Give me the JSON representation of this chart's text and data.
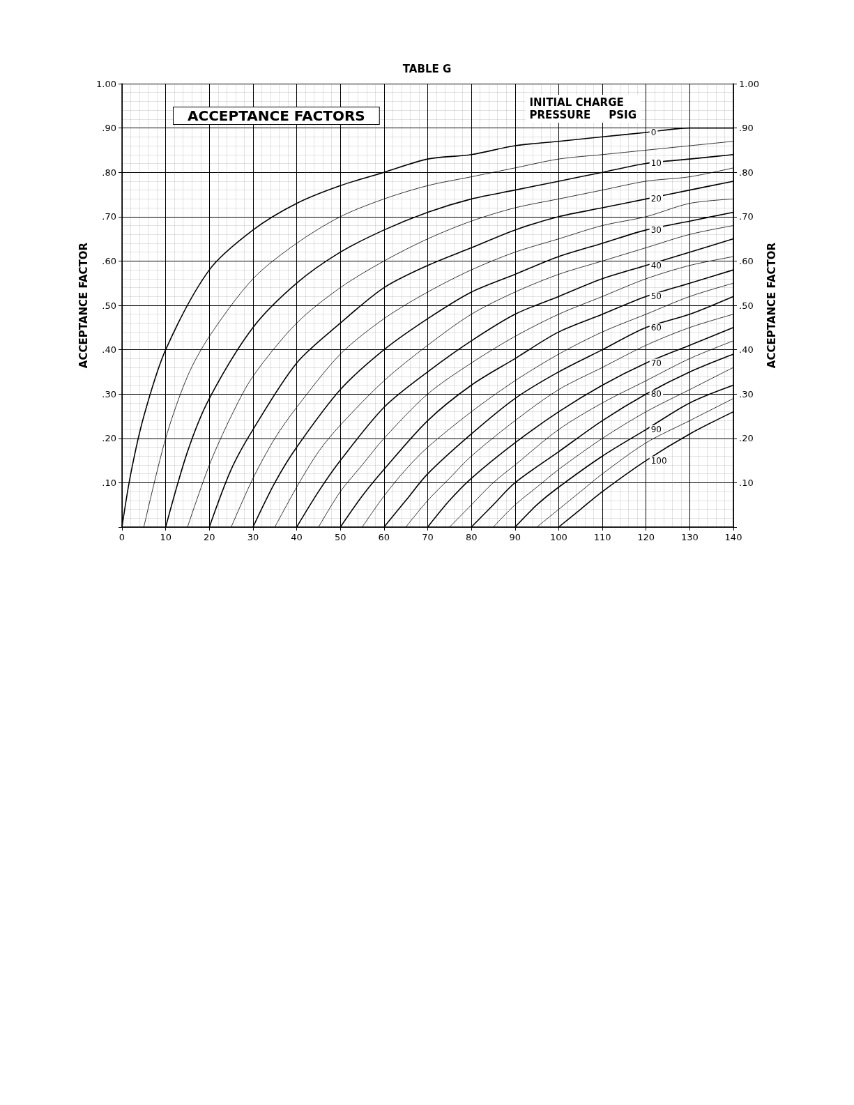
{
  "chart_data": {
    "type": "line",
    "title": "TABLE G",
    "ylabel": "ACCEPTANCE FACTOR",
    "y2label": "ACCEPTANCE FACTOR",
    "legend_title": "INITIAL CHARGE\nPRESSURE     PSIG",
    "annotations": [
      "ACCEPTANCE FACTORS"
    ],
    "xlim": [
      0,
      140
    ],
    "xticks": [
      0,
      10,
      20,
      30,
      40,
      50,
      60,
      70,
      80,
      90,
      100,
      110,
      120,
      130,
      140
    ],
    "ylim": [
      0,
      1
    ],
    "yticks": [
      {
        "value": 0,
        "label": null
      },
      {
        "value": 0.1,
        "label": ".10"
      },
      {
        "value": 0.2,
        "label": ".20"
      },
      {
        "value": 0.3,
        "label": ".30"
      },
      {
        "value": 0.4,
        "label": ".40"
      },
      {
        "value": 0.5,
        "label": ".50"
      },
      {
        "value": 0.6,
        "label": ".60"
      },
      {
        "value": 0.7,
        "label": ".70"
      },
      {
        "value": 0.8,
        "label": ".80"
      },
      {
        "value": 0.9,
        "label": ".90"
      },
      {
        "value": 1,
        "label": "1.00"
      }
    ],
    "y2lim": [
      0,
      1
    ],
    "y2ticks": [
      {
        "value": 0,
        "label": null
      },
      {
        "value": 0.1,
        "label": ".10"
      },
      {
        "value": 0.2,
        "label": ".20"
      },
      {
        "value": 0.3,
        "label": ".30"
      },
      {
        "value": 0.4,
        "label": ".40"
      },
      {
        "value": 0.5,
        "label": ".50"
      },
      {
        "value": 0.6,
        "label": ".60"
      },
      {
        "value": 0.7,
        "label": ".70"
      },
      {
        "value": 0.8,
        "label": ".80"
      },
      {
        "value": 0.9,
        "label": ".90"
      },
      {
        "value": 1,
        "label": "1.00"
      }
    ],
    "grid": true,
    "marker": "none",
    "line_style": "solid",
    "series": [
      {
        "name": "0",
        "color": "#000000",
        "x": [
          0,
          2,
          5,
          10,
          20,
          30,
          40,
          50,
          60,
          70,
          80,
          90,
          100,
          110,
          120,
          130,
          140
        ],
        "values": [
          0,
          0.12,
          0.25,
          0.4,
          0.58,
          0.67,
          0.73,
          0.77,
          0.8,
          0.83,
          0.84,
          0.86,
          0.87,
          0.88,
          0.89,
          0.9,
          0.9
        ]
      },
      {
        "color": "#000000",
        "x": [
          5,
          10,
          15,
          20,
          30,
          40,
          50,
          60,
          70,
          80,
          90,
          100,
          110,
          120,
          130,
          140
        ],
        "values": [
          0,
          0.2,
          0.34,
          0.43,
          0.56,
          0.64,
          0.7,
          0.74,
          0.77,
          0.79,
          0.81,
          0.83,
          0.84,
          0.85,
          0.86,
          0.87
        ]
      },
      {
        "name": "10",
        "color": "#000000",
        "x": [
          10,
          15,
          20,
          30,
          40,
          50,
          60,
          70,
          80,
          90,
          100,
          110,
          120,
          130,
          140
        ],
        "values": [
          0,
          0.17,
          0.29,
          0.45,
          0.55,
          0.62,
          0.67,
          0.71,
          0.74,
          0.76,
          0.78,
          0.8,
          0.82,
          0.83,
          0.84
        ]
      },
      {
        "color": "#000000",
        "x": [
          15,
          20,
          25,
          30,
          40,
          50,
          60,
          70,
          80,
          90,
          100,
          110,
          120,
          130,
          140
        ],
        "values": [
          0,
          0.14,
          0.25,
          0.34,
          0.46,
          0.54,
          0.6,
          0.65,
          0.69,
          0.72,
          0.74,
          0.76,
          0.78,
          0.79,
          0.81
        ]
      },
      {
        "name": "20",
        "color": "#000000",
        "x": [
          20,
          25,
          30,
          40,
          50,
          60,
          70,
          80,
          90,
          100,
          110,
          120,
          130,
          140
        ],
        "values": [
          0,
          0.13,
          0.22,
          0.37,
          0.46,
          0.54,
          0.59,
          0.63,
          0.67,
          0.7,
          0.72,
          0.74,
          0.76,
          0.78
        ]
      },
      {
        "color": "#000000",
        "x": [
          25,
          30,
          35,
          40,
          50,
          60,
          70,
          80,
          90,
          100,
          110,
          120,
          130,
          140
        ],
        "values": [
          0,
          0.11,
          0.2,
          0.27,
          0.39,
          0.47,
          0.53,
          0.58,
          0.62,
          0.65,
          0.68,
          0.7,
          0.73,
          0.74
        ]
      },
      {
        "name": "30",
        "color": "#000000",
        "x": [
          30,
          35,
          40,
          50,
          60,
          70,
          80,
          90,
          100,
          110,
          120,
          130,
          140
        ],
        "values": [
          0,
          0.1,
          0.18,
          0.31,
          0.4,
          0.47,
          0.53,
          0.57,
          0.61,
          0.64,
          0.67,
          0.69,
          0.71
        ]
      },
      {
        "color": "#000000",
        "x": [
          35,
          40,
          45,
          50,
          60,
          70,
          80,
          90,
          100,
          110,
          120,
          130,
          140
        ],
        "values": [
          0,
          0.09,
          0.17,
          0.23,
          0.33,
          0.41,
          0.48,
          0.53,
          0.57,
          0.6,
          0.63,
          0.66,
          0.68
        ]
      },
      {
        "name": "40",
        "color": "#000000",
        "x": [
          40,
          45,
          50,
          60,
          70,
          80,
          90,
          100,
          110,
          120,
          130,
          140
        ],
        "values": [
          0,
          0.08,
          0.15,
          0.27,
          0.35,
          0.42,
          0.48,
          0.52,
          0.56,
          0.59,
          0.62,
          0.65
        ]
      },
      {
        "color": "#000000",
        "x": [
          45,
          50,
          55,
          60,
          70,
          80,
          90,
          100,
          110,
          120,
          130,
          140
        ],
        "values": [
          0,
          0.08,
          0.14,
          0.2,
          0.3,
          0.37,
          0.43,
          0.48,
          0.52,
          0.56,
          0.59,
          0.61
        ]
      },
      {
        "name": "50",
        "color": "#000000",
        "x": [
          50,
          55,
          60,
          70,
          80,
          90,
          100,
          110,
          120,
          130,
          140
        ],
        "values": [
          0,
          0.07,
          0.13,
          0.24,
          0.32,
          0.38,
          0.44,
          0.48,
          0.52,
          0.55,
          0.58
        ]
      },
      {
        "color": "#000000",
        "x": [
          55,
          60,
          65,
          70,
          80,
          90,
          100,
          110,
          120,
          130,
          140
        ],
        "values": [
          0,
          0.07,
          0.13,
          0.18,
          0.26,
          0.33,
          0.39,
          0.44,
          0.48,
          0.52,
          0.55
        ]
      },
      {
        "name": "60",
        "color": "#000000",
        "x": [
          60,
          65,
          70,
          80,
          90,
          100,
          110,
          120,
          130,
          140
        ],
        "values": [
          0,
          0.06,
          0.12,
          0.21,
          0.29,
          0.35,
          0.4,
          0.45,
          0.48,
          0.52
        ]
      },
      {
        "color": "#000000",
        "x": [
          65,
          70,
          75,
          80,
          90,
          100,
          110,
          120,
          130,
          140
        ],
        "values": [
          0,
          0.06,
          0.11,
          0.16,
          0.24,
          0.31,
          0.36,
          0.41,
          0.45,
          0.48
        ]
      },
      {
        "name": "70",
        "color": "#000000",
        "x": [
          70,
          75,
          80,
          90,
          100,
          110,
          120,
          130,
          140
        ],
        "values": [
          0,
          0.06,
          0.11,
          0.19,
          0.26,
          0.32,
          0.37,
          0.41,
          0.45
        ]
      },
      {
        "color": "#000000",
        "x": [
          75,
          80,
          85,
          90,
          100,
          110,
          120,
          130,
          140
        ],
        "values": [
          0,
          0.05,
          0.1,
          0.14,
          0.22,
          0.28,
          0.33,
          0.38,
          0.42
        ]
      },
      {
        "name": "80",
        "color": "#000000",
        "x": [
          80,
          85,
          90,
          100,
          110,
          120,
          130,
          140
        ],
        "values": [
          0,
          0.05,
          0.1,
          0.17,
          0.24,
          0.3,
          0.35,
          0.39
        ]
      },
      {
        "color": "#000000",
        "x": [
          85,
          90,
          95,
          100,
          110,
          120,
          130,
          140
        ],
        "values": [
          0,
          0.05,
          0.09,
          0.13,
          0.2,
          0.26,
          0.31,
          0.36
        ]
      },
      {
        "name": "90",
        "color": "#000000",
        "x": [
          90,
          95,
          100,
          110,
          120,
          130,
          140
        ],
        "values": [
          0,
          0.05,
          0.09,
          0.16,
          0.22,
          0.28,
          0.32
        ]
      },
      {
        "color": "#000000",
        "x": [
          95,
          100,
          105,
          110,
          120,
          130,
          140
        ],
        "values": [
          0,
          0.04,
          0.08,
          0.12,
          0.19,
          0.24,
          0.29
        ]
      },
      {
        "name": "100",
        "color": "#000000",
        "x": [
          100,
          105,
          110,
          120,
          130,
          140
        ],
        "values": [
          0,
          0.04,
          0.08,
          0.15,
          0.21,
          0.26
        ]
      }
    ]
  }
}
